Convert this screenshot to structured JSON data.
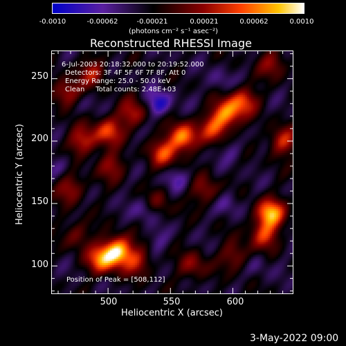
{
  "colorbar": {
    "tick_labels": [
      "-0.0010",
      "-0.00062",
      "-0.00021",
      "0.00021",
      "0.00062",
      "0.0010"
    ],
    "units_label": "(photons cm⁻² s⁻¹ asec⁻²)",
    "range": [
      -0.001,
      0.001
    ],
    "colors": [
      "#0000c8",
      "#5a1fa0",
      "#000000",
      "#8a0000",
      "#ff4000",
      "#ffc400",
      "#ffffff"
    ]
  },
  "chart_data": {
    "type": "heatmap",
    "title": "Reconstructed RHESSI Image",
    "xlabel": "Heliocentric X (arcsec)",
    "ylabel": "Heliocentric Y (arcsec)",
    "xlim": [
      455,
      648
    ],
    "ylim": [
      78,
      272
    ],
    "x_ticks": [
      "500",
      "550",
      "600"
    ],
    "y_ticks": [
      "100",
      "150",
      "200",
      "250"
    ],
    "annotations": [
      "6-Jul-2003 20:18:32.000 to 20:19:52.000",
      "Detectors: 3F 4F 5F 6F 7F 8F, Att 0",
      "Energy Range: 25.0 - 50.0 keV",
      "Clean     Total counts: 2.48E+03",
      "Position of Peak = [508,112]"
    ],
    "peak": {
      "x": 508,
      "y": 112
    },
    "sources": [
      {
        "x": 508,
        "y": 112,
        "intensity": 1.0
      },
      {
        "x": 495,
        "y": 105,
        "intensity": 0.75
      },
      {
        "x": 524,
        "y": 103,
        "intensity": 0.45
      },
      {
        "x": 630,
        "y": 142,
        "intensity": 0.9
      },
      {
        "x": 625,
        "y": 125,
        "intensity": 0.55
      },
      {
        "x": 560,
        "y": 203,
        "intensity": 0.85
      },
      {
        "x": 545,
        "y": 190,
        "intensity": 0.6
      },
      {
        "x": 585,
        "y": 210,
        "intensity": 0.55
      },
      {
        "x": 595,
        "y": 222,
        "intensity": 0.75
      },
      {
        "x": 608,
        "y": 232,
        "intensity": 0.6
      },
      {
        "x": 500,
        "y": 208,
        "intensity": 0.6
      },
      {
        "x": 520,
        "y": 222,
        "intensity": 0.5
      },
      {
        "x": 480,
        "y": 200,
        "intensity": 0.55
      },
      {
        "x": 467,
        "y": 238,
        "intensity": 0.55
      },
      {
        "x": 488,
        "y": 255,
        "intensity": 0.45
      },
      {
        "x": 503,
        "y": 180,
        "intensity": 0.4
      },
      {
        "x": 640,
        "y": 200,
        "intensity": 0.55
      },
      {
        "x": 632,
        "y": 262,
        "intensity": 0.4
      },
      {
        "x": 470,
        "y": 162,
        "intensity": 0.45
      },
      {
        "x": 578,
        "y": 160,
        "intensity": 0.4
      },
      {
        "x": 568,
        "y": 100,
        "intensity": 0.4
      },
      {
        "x": 602,
        "y": 108,
        "intensity": 0.4
      },
      {
        "x": 475,
        "y": 125,
        "intensity": 0.35
      },
      {
        "x": 540,
        "y": 150,
        "intensity": 0.3
      }
    ],
    "negative_sources": [
      {
        "x": 541,
        "y": 230,
        "intensity": 1.0
      },
      {
        "x": 530,
        "y": 145,
        "intensity": 0.55
      },
      {
        "x": 556,
        "y": 170,
        "intensity": 0.5
      },
      {
        "x": 596,
        "y": 150,
        "intensity": 0.45
      },
      {
        "x": 462,
        "y": 180,
        "intensity": 0.4
      },
      {
        "x": 590,
        "y": 248,
        "intensity": 0.4
      },
      {
        "x": 600,
        "y": 192,
        "intensity": 0.35
      },
      {
        "x": 540,
        "y": 120,
        "intensity": 0.35
      },
      {
        "x": 620,
        "y": 100,
        "intensity": 0.3
      },
      {
        "x": 478,
        "y": 230,
        "intensity": 0.3
      }
    ]
  },
  "footer": {
    "date": "3-May-2022 09:00"
  }
}
